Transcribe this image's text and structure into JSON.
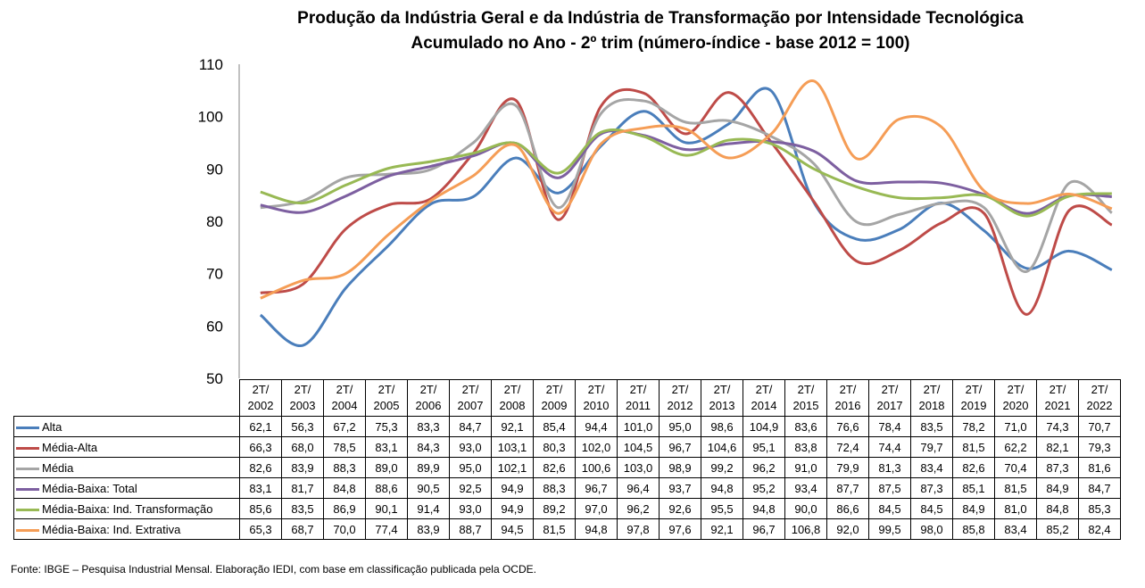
{
  "chart_data": {
    "type": "line",
    "title": "Produção da Indústria Geral e da Indústria de Transformação por Intensidade Tecnológica",
    "subtitle": "Acumulado no Ano - 2º trim (número-índice - base 2012 = 100)",
    "categories": [
      "2T/ 2002",
      "2T/ 2003",
      "2T/ 2004",
      "2T/ 2005",
      "2T/ 2006",
      "2T/ 2007",
      "2T/ 2008",
      "2T/ 2009",
      "2T/ 2010",
      "2T/ 2011",
      "2T/ 2012",
      "2T/ 2013",
      "2T/ 2014",
      "2T/ 2015",
      "2T/ 2016",
      "2T/ 2017",
      "2T/ 2018",
      "2T/ 2019",
      "2T/ 2020",
      "2T/ 2021",
      "2T/ 2022"
    ],
    "ylim": [
      50,
      110
    ],
    "yticks": [
      "50",
      "60",
      "70",
      "80",
      "90",
      "100",
      "110"
    ],
    "grid": false,
    "legend": "data-table",
    "series": [
      {
        "name": "Alta",
        "color": "#4a7ebb",
        "values": [
          62.1,
          56.3,
          67.2,
          75.3,
          83.3,
          84.7,
          92.1,
          85.4,
          94.4,
          101.0,
          95.0,
          98.6,
          104.9,
          83.6,
          76.6,
          78.4,
          83.5,
          78.2,
          71.0,
          74.3,
          70.7
        ],
        "labels": [
          "62,1",
          "56,3",
          "67,2",
          "75,3",
          "83,3",
          "84,7",
          "92,1",
          "85,4",
          "94,4",
          "101,0",
          "95,0",
          "98,6",
          "104,9",
          "83,6",
          "76,6",
          "78,4",
          "83,5",
          "78,2",
          "71,0",
          "74,3",
          "70,7"
        ]
      },
      {
        "name": "Média-Alta",
        "color": "#be4b48",
        "values": [
          66.3,
          68.0,
          78.5,
          83.1,
          84.3,
          93.0,
          103.1,
          80.3,
          102.0,
          104.5,
          96.7,
          104.6,
          95.1,
          83.8,
          72.4,
          74.4,
          79.7,
          81.5,
          62.2,
          82.1,
          79.3
        ],
        "labels": [
          "66,3",
          "68,0",
          "78,5",
          "83,1",
          "84,3",
          "93,0",
          "103,1",
          "80,3",
          "102,0",
          "104,5",
          "96,7",
          "104,6",
          "95,1",
          "83,8",
          "72,4",
          "74,4",
          "79,7",
          "81,5",
          "62,2",
          "82,1",
          "79,3"
        ]
      },
      {
        "name": "Média",
        "color": "#a5a5a5",
        "values": [
          82.6,
          83.9,
          88.3,
          89.0,
          89.9,
          95.0,
          102.1,
          82.6,
          100.6,
          103.0,
          98.9,
          99.2,
          96.2,
          91.0,
          79.9,
          81.3,
          83.4,
          82.6,
          70.4,
          87.3,
          81.6
        ],
        "labels": [
          "82,6",
          "83,9",
          "88,3",
          "89,0",
          "89,9",
          "95,0",
          "102,1",
          "82,6",
          "100,6",
          "103,0",
          "98,9",
          "99,2",
          "96,2",
          "91,0",
          "79,9",
          "81,3",
          "83,4",
          "82,6",
          "70,4",
          "87,3",
          "81,6"
        ]
      },
      {
        "name": "Média-Baixa: Total",
        "color": "#7d5fa0",
        "values": [
          83.1,
          81.7,
          84.8,
          88.6,
          90.5,
          92.5,
          94.9,
          88.3,
          96.7,
          96.4,
          93.7,
          94.8,
          95.2,
          93.4,
          87.7,
          87.5,
          87.3,
          85.1,
          81.5,
          84.9,
          84.7
        ],
        "labels": [
          "83,1",
          "81,7",
          "84,8",
          "88,6",
          "90,5",
          "92,5",
          "94,9",
          "88,3",
          "96,7",
          "96,4",
          "93,7",
          "94,8",
          "95,2",
          "93,4",
          "87,7",
          "87,5",
          "87,3",
          "85,1",
          "81,5",
          "84,9",
          "84,7"
        ]
      },
      {
        "name": "Média-Baixa: Ind. Transformação",
        "color": "#98b954",
        "values": [
          85.6,
          83.5,
          86.9,
          90.1,
          91.4,
          93.0,
          94.9,
          89.2,
          97.0,
          96.2,
          92.6,
          95.5,
          94.8,
          90.0,
          86.6,
          84.5,
          84.5,
          84.9,
          81.0,
          84.8,
          85.3
        ],
        "labels": [
          "85,6",
          "83,5",
          "86,9",
          "90,1",
          "91,4",
          "93,0",
          "94,9",
          "89,2",
          "97,0",
          "96,2",
          "92,6",
          "95,5",
          "94,8",
          "90,0",
          "86,6",
          "84,5",
          "84,5",
          "84,9",
          "81,0",
          "84,8",
          "85,3"
        ]
      },
      {
        "name": "Média-Baixa: Ind. Extrativa",
        "color": "#f59d56",
        "values": [
          65.3,
          68.7,
          70.0,
          77.4,
          83.9,
          88.7,
          94.5,
          81.5,
          94.8,
          97.8,
          97.6,
          92.1,
          96.7,
          106.8,
          92.0,
          99.5,
          98.0,
          85.8,
          83.4,
          85.2,
          82.4
        ],
        "labels": [
          "65,3",
          "68,7",
          "70,0",
          "77,4",
          "83,9",
          "88,7",
          "94,5",
          "81,5",
          "94,8",
          "97,8",
          "97,6",
          "92,1",
          "96,7",
          "106,8",
          "92,0",
          "99,5",
          "98,0",
          "85,8",
          "83,4",
          "85,2",
          "82,4"
        ]
      }
    ]
  },
  "source": "Fonte: IBGE – Pesquisa Industrial Mensal. Elaboração IEDI, com base em classificação publicada pela OCDE."
}
